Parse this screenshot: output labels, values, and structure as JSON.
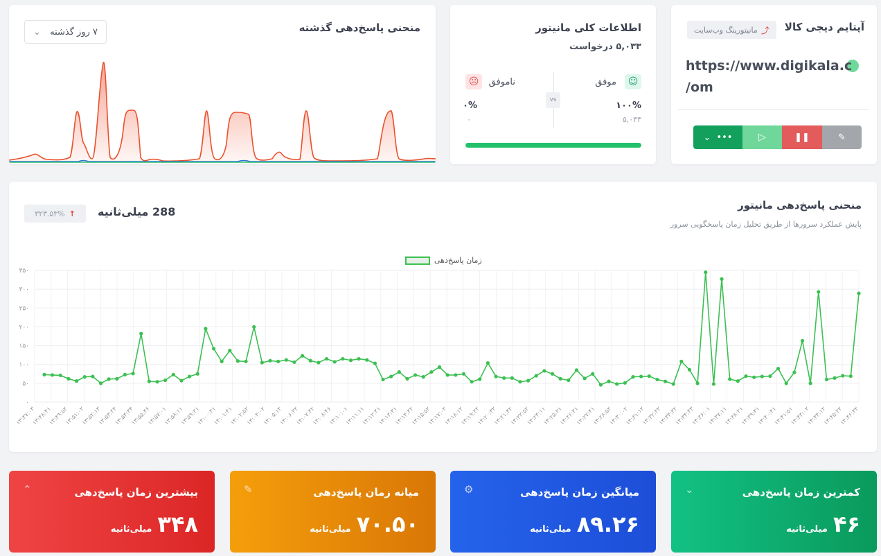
{
  "monitor": {
    "title": "آپتایم دیجی کالا",
    "badge": "مانیتورینگ وب‌سایت",
    "url_line1": "https://www.digikala.c",
    "url_line2": "/om",
    "status_color": "#6fd89a",
    "buttons": {
      "more": "•••"
    }
  },
  "overview": {
    "title": "اطلاعات کلی مانیتور",
    "requests": "۵,۰۳۳ درخواست",
    "success_label": "موفق",
    "fail_label": "ناموفق",
    "vs": "vs",
    "success_pct": "۱۰۰%",
    "fail_pct": "۰%",
    "success_count": "۵,۰۳۳",
    "fail_count": "۰",
    "progress": 1.0
  },
  "past_curve": {
    "title": "منحنی پاسخ‌دهی گذشته",
    "range_select": "۷ روز گذشته"
  },
  "main_chart_card": {
    "title": "منحنی پاسخ‌دهی مانیتور",
    "subtitle": "پایش عملکرد سرورها از طریق تحلیل زمان پاسخگویی سرور",
    "current_value": "288 میلی‌ثانیه",
    "change": "۳۲۳.۵۳%",
    "legend": "زمان پاسخ‌دهی"
  },
  "chart_data": {
    "type": "line",
    "series": [
      {
        "name": "زمان پاسخ‌دهی",
        "color": "#3cc052",
        "values": [
          73,
          72,
          71,
          62,
          56,
          67,
          68,
          50,
          61,
          62,
          73,
          76,
          182,
          55,
          54,
          58,
          73,
          57,
          68,
          75,
          195,
          142,
          108,
          137,
          109,
          108,
          200,
          105,
          110,
          108,
          112,
          106,
          123,
          110,
          105,
          115,
          107,
          115,
          111,
          115,
          112,
          103,
          60,
          68,
          80,
          62,
          72,
          67,
          80,
          93,
          72,
          72,
          75,
          54,
          61,
          104,
          68,
          64,
          64,
          54,
          57,
          70,
          83,
          75,
          62,
          58,
          85,
          63,
          75,
          46,
          55,
          48,
          51,
          67,
          68,
          69,
          60,
          55,
          48,
          108,
          86,
          50,
          345,
          48,
          327,
          61,
          56,
          69,
          66,
          68,
          69,
          89,
          50,
          79,
          163,
          50,
          293,
          60,
          64,
          70,
          69,
          289
        ]
      }
    ],
    "ylim": [
      0,
      350
    ],
    "yticks": [
      "۰",
      "۵۰",
      "۱۰۰",
      "۱۵۰",
      "۲۰۰",
      "۲۵۰",
      "۳۰۰",
      "۳۵۰"
    ],
    "xticks": [
      "۱۳:۴۷:۰۳",
      "۱۳:۴۸:۴۱",
      "۱۳:۴۹:۵۲",
      "۱۳:۵۱:۰۲",
      "۱۳:۵۲:۱۳",
      "۱۳:۵۳:۲۴",
      "۱۳:۵۴:۳۴",
      "۱۳:۵۵:۴۶",
      "۱۳:۵۷:۰۱",
      "۱۳:۵۸:۱۱",
      "۱۳:۵۹:۲۱",
      "۱۴:۰۰:۳۱",
      "۱۴:۰۱:۴۱",
      "۱۴:۰۲:۵۲",
      "۱۴:۰۴:۰۲",
      "۱۴:۰۵:۱۲",
      "۱۴:۰۶:۲۲",
      "۱۴:۰۷:۳۲",
      "۱۴:۰۸:۴۶",
      "۱۴:۱۰:۰۱",
      "۱۴:۱۱:۱۱",
      "۱۴:۱۲:۲۱",
      "۱۴:۱۳:۳۱",
      "۱۴:۱۴:۴۲",
      "۱۴:۱۵:۵۲",
      "۱۴:۱۷:۰۲",
      "۱۴:۱۸:۱۲",
      "۱۴:۱۹:۲۲",
      "۱۴:۲۰:۳۲",
      "۱۴:۲۱:۴۲",
      "۱۴:۲۲:۵۲",
      "۱۴:۲۴:۱۱",
      "۱۴:۲۵:۲۱",
      "۱۴:۲۶:۳۱",
      "۱۴:۲۷:۴۱",
      "۱۴:۲۸:۵۲",
      "۱۴:۳۰:۰۲",
      "۱۴:۳۱:۱۲",
      "۱۴:۳۲:۲۲",
      "۱۴:۳۳:۳۲",
      "۱۴:۳۴:۴۳",
      "۱۴:۳۶:۰۱",
      "۱۴:۳۷:۱۱",
      "۱۴:۳۸:۲۱",
      "۱۴:۳۹:۳۱",
      "۱۴:۴۰:۴۱",
      "۱۴:۴۱:۵۱",
      "۱۴:۴۳:۰۲",
      "۱۴:۴۴:۱۲",
      "۱۴:۴۵:۲۲",
      "۱۴:۴۶:۳۲"
    ],
    "grid": true,
    "legend_position": "top-center"
  },
  "stats": [
    {
      "label": "کمترین زمان پاسخ‌دهی",
      "value": "۴۶",
      "unit": "میلی‌ثانیه",
      "color1": "#0a9a5c",
      "color2": "#12c184",
      "icon": "chevron-down-icon"
    },
    {
      "label": "میانگین زمان پاسخ‌دهی",
      "value": "۸۹.۲۶",
      "unit": "میلی‌ثانیه",
      "color1": "#1d4ed8",
      "color2": "#2563eb",
      "icon": "gear-icon"
    },
    {
      "label": "میانه زمان پاسخ‌دهی",
      "value": "۷۰.۵۰",
      "unit": "میلی‌ثانیه",
      "color1": "#d97706",
      "color2": "#f59e0b",
      "icon": "pencil-icon"
    },
    {
      "label": "بیشترین زمان پاسخ‌دهی",
      "value": "۳۴۸",
      "unit": "میلی‌ثانیه",
      "color1": "#dc2626",
      "color2": "#ef4444",
      "icon": "chevron-up-icon"
    }
  ]
}
